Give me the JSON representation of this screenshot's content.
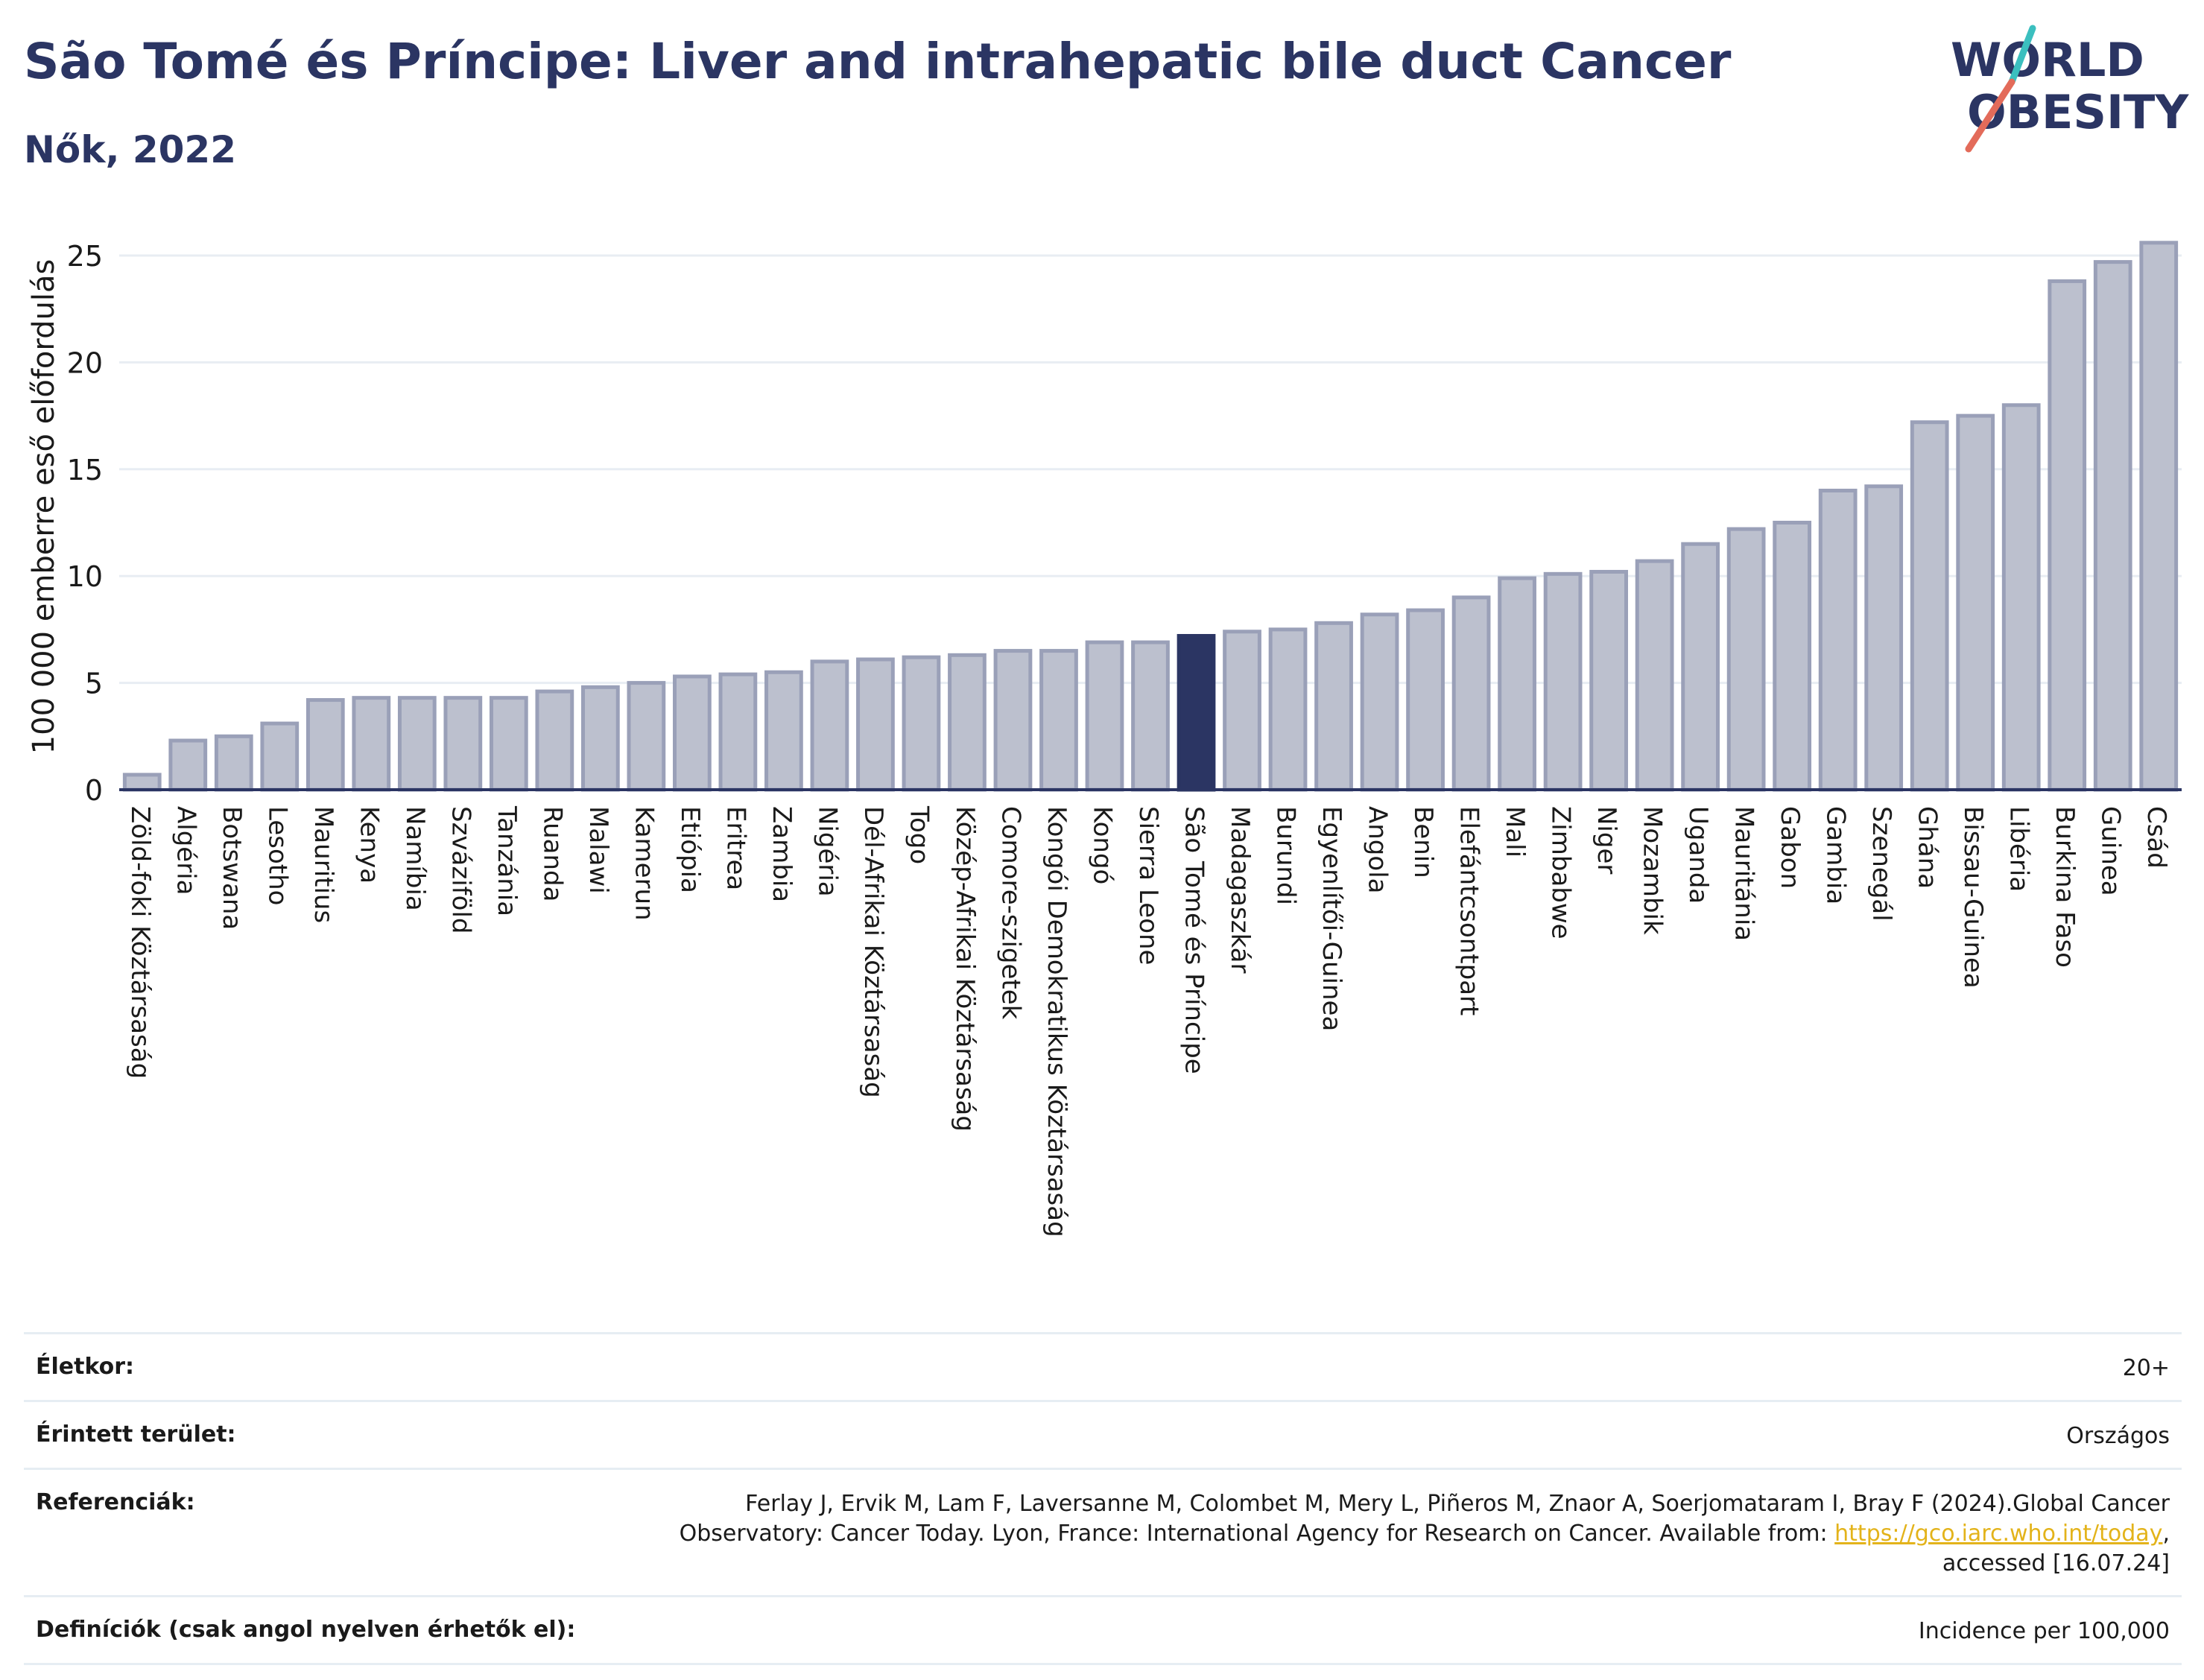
{
  "header": {
    "title": "São Tomé és Príncipe: Liver and intrahepatic bile duct Cancer",
    "subtitle": "Nők, 2022",
    "logo_text_line1": "WORLD",
    "logo_text_line2": "OBESITY"
  },
  "colors": {
    "bar": "#bcc0ce",
    "bar_stroke": "#9aa0b8",
    "highlight": "#2b3563",
    "axis": "#2b3563",
    "grid": "#e8edf3",
    "logo_teal": "#3bbfbf",
    "logo_red": "#e36b5a",
    "link": "#e3b31a"
  },
  "chart_data": {
    "type": "bar",
    "ylabel": "100 000 emberre eső előfordulás",
    "ylim": [
      0,
      26.5
    ],
    "yticks": [
      0,
      5,
      10,
      15,
      20,
      25
    ],
    "grid": true,
    "highlight_category": "São Tomé és Príncipe",
    "categories": [
      "Zöld-foki Köztársaság",
      "Algéria",
      "Botswana",
      "Lesotho",
      "Mauritius",
      "Kenya",
      "Namíbia",
      "Szváziföld",
      "Tanzánia",
      "Ruanda",
      "Malawi",
      "Kamerun",
      "Etiópia",
      "Eritrea",
      "Zambia",
      "Nigéria",
      "Dél-Afrikai Köztársaság",
      "Togo",
      "Közép-Afrikai Köztársaság",
      "Comore-szigetek",
      "Kongói Demokratikus Köztársaság",
      "Kongó",
      "Sierra Leone",
      "São Tomé és Príncipe",
      "Madagaszkár",
      "Burundi",
      "Egyenlítői-Guinea",
      "Angola",
      "Benin",
      "Elefántcsontpart",
      "Mali",
      "Zimbabwe",
      "Niger",
      "Mozambik",
      "Uganda",
      "Mauritánia",
      "Gabon",
      "Gambia",
      "Szenegál",
      "Ghána",
      "Bissau-Guinea",
      "Libéria",
      "Burkina Faso",
      "Guinea",
      "Csád"
    ],
    "values": [
      0.7,
      2.3,
      2.5,
      3.1,
      4.2,
      4.3,
      4.3,
      4.3,
      4.3,
      4.6,
      4.8,
      5.0,
      5.3,
      5.4,
      5.5,
      6.0,
      6.1,
      6.2,
      6.3,
      6.5,
      6.5,
      6.9,
      6.9,
      7.2,
      7.4,
      7.5,
      7.8,
      8.2,
      8.4,
      9.0,
      9.9,
      10.1,
      10.2,
      10.7,
      11.5,
      12.2,
      12.5,
      14.0,
      14.2,
      17.2,
      17.5,
      18.0,
      23.8,
      24.7,
      25.6
    ]
  },
  "info": {
    "age_label": "Életkor:",
    "age_value": "20+",
    "area_label": "Érintett terület:",
    "area_value": "Országos",
    "ref_label": "Referenciák:",
    "ref_text_1": "Ferlay J, Ervik M, Lam F, Laversanne M, Colombet M, Mery L, Piñeros M, Znaor A, Soerjomataram I, Bray F (2024).Global Cancer",
    "ref_text_2": "Observatory: Cancer Today. Lyon, France: International Agency for Research on Cancer. Available from:",
    "ref_link": "https://gco.iarc.who.int/today",
    "ref_text_3": "accessed [16.07.24]",
    "def_label": "Definíciók (csak angol nyelven érhetők el):",
    "def_value": "Incidence per 100,000"
  }
}
